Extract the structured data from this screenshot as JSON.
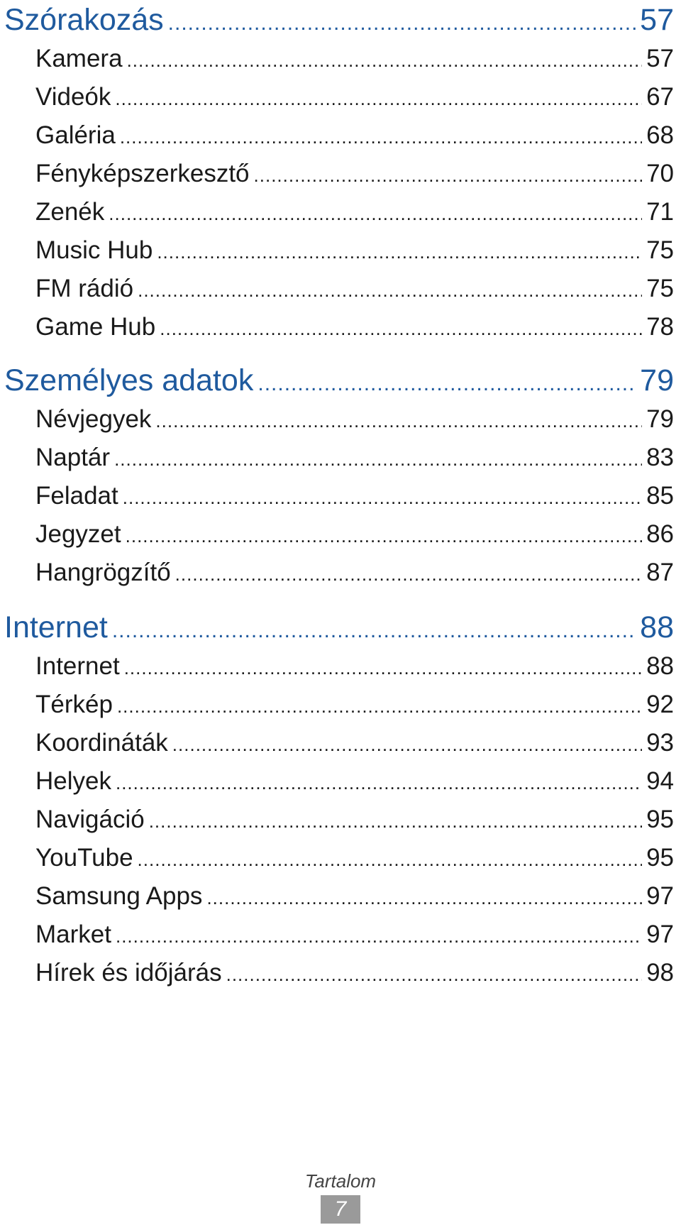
{
  "sections": [
    {
      "title": "Szórakozás",
      "page": "57",
      "entries": [
        {
          "label": "Kamera",
          "page": "57"
        },
        {
          "label": "Videók",
          "page": "67"
        },
        {
          "label": "Galéria",
          "page": "68"
        },
        {
          "label": "Fényképszerkesztő",
          "page": "70"
        },
        {
          "label": "Zenék",
          "page": "71"
        },
        {
          "label": "Music Hub",
          "page": "75"
        },
        {
          "label": "FM rádió",
          "page": "75"
        },
        {
          "label": "Game Hub",
          "page": "78"
        }
      ]
    },
    {
      "title": "Személyes adatok",
      "page": "79",
      "entries": [
        {
          "label": "Névjegyek",
          "page": "79"
        },
        {
          "label": "Naptár",
          "page": "83"
        },
        {
          "label": "Feladat",
          "page": "85"
        },
        {
          "label": "Jegyzet",
          "page": "86"
        },
        {
          "label": "Hangrögzítő",
          "page": "87"
        }
      ]
    },
    {
      "title": "Internet",
      "page": "88",
      "entries": [
        {
          "label": "Internet",
          "page": "88"
        },
        {
          "label": "Térkép",
          "page": "92"
        },
        {
          "label": "Koordináták",
          "page": "93"
        },
        {
          "label": "Helyek",
          "page": "94"
        },
        {
          "label": "Navigáció",
          "page": "95"
        },
        {
          "label": "YouTube",
          "page": "95"
        },
        {
          "label": "Samsung Apps",
          "page": "97"
        },
        {
          "label": "Market",
          "page": "97"
        },
        {
          "label": "Hírek és időjárás",
          "page": "98"
        }
      ]
    }
  ],
  "footer": {
    "label": "Tartalom",
    "page": "7"
  },
  "colors": {
    "heading": "#1f5a9e",
    "text": "#1a1a1a",
    "page_badge": "#9a9a9a"
  }
}
